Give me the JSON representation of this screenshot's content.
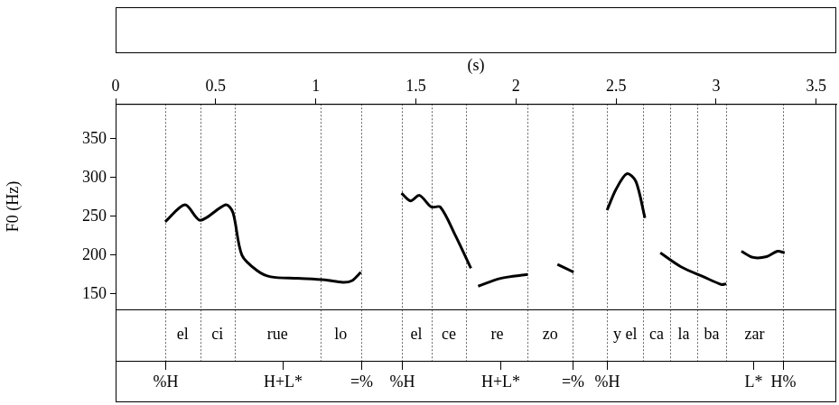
{
  "chart_data": {
    "type": "line",
    "x_label": "(s)",
    "y_label": "F0 (Hz)",
    "x": [
      0.248,
      0.347,
      0.423,
      0.55,
      0.586,
      0.631,
      0.707,
      0.775,
      0.91,
      1.045,
      1.135,
      1.18,
      1.225,
      1.3,
      1.428,
      1.473,
      1.518,
      1.577,
      1.622,
      1.698,
      1.775,
      1.79,
      1.811,
      1.923,
      2.059,
      2.13,
      2.207,
      2.288,
      2.37,
      2.455,
      2.5,
      2.554,
      2.599,
      2.644,
      2.68,
      2.721,
      2.824,
      2.937,
      3.027,
      3.05,
      3.09,
      3.126,
      3.185,
      3.252,
      3.306,
      3.342
    ],
    "values": [
      243,
      265,
      245,
      265,
      255,
      200,
      180,
      172,
      170,
      168,
      165,
      167,
      178,
      null,
      280,
      270,
      277,
      262,
      262,
      225,
      183,
      null,
      160,
      170,
      175,
      null,
      188,
      178,
      null,
      258,
      285,
      305,
      295,
      248,
      null,
      203,
      185,
      172,
      162,
      163,
      null,
      205,
      197,
      198,
      205,
      203
    ],
    "color": "#000000",
    "xlim": [
      0,
      3.6
    ],
    "xticks": [
      0,
      0.5,
      1,
      1.5,
      2,
      2.5,
      3,
      3.5
    ],
    "ylim": [
      130,
      395
    ],
    "yticks": [
      150,
      200,
      250,
      300,
      350
    ],
    "grid": false,
    "syllables": [
      {
        "label": "el",
        "start": 0.248,
        "end": 0.423
      },
      {
        "label": "ci",
        "start": 0.423,
        "end": 0.595
      },
      {
        "label": "rue",
        "start": 0.595,
        "end": 1.023
      },
      {
        "label": "lo",
        "start": 1.023,
        "end": 1.225
      },
      {
        "label": "el",
        "start": 1.428,
        "end": 1.577
      },
      {
        "label": "ce",
        "start": 1.577,
        "end": 1.752
      },
      {
        "label": "re",
        "start": 1.752,
        "end": 2.059
      },
      {
        "label": "zo",
        "start": 2.059,
        "end": 2.284
      },
      {
        "label": "y el",
        "start": 2.455,
        "end": 2.635
      },
      {
        "label": "ca",
        "start": 2.635,
        "end": 2.77
      },
      {
        "label": "la",
        "start": 2.77,
        "end": 2.905
      },
      {
        "label": "ba",
        "start": 2.905,
        "end": 3.05
      },
      {
        "label": "zar",
        "start": 3.05,
        "end": 3.333
      }
    ],
    "tones": [
      {
        "label": "%H",
        "time": 0.248
      },
      {
        "label": "H+L*",
        "time": 0.833
      },
      {
        "label": "=%",
        "time": 1.225
      },
      {
        "label": "%H",
        "time": 1.428
      },
      {
        "label": "H+L*",
        "time": 1.923
      },
      {
        "label": "=%",
        "time": 2.284
      },
      {
        "label": "%H",
        "time": 2.455
      },
      {
        "label": "L*",
        "time": 3.185
      },
      {
        "label": "H%",
        "time": 3.333
      }
    ]
  }
}
